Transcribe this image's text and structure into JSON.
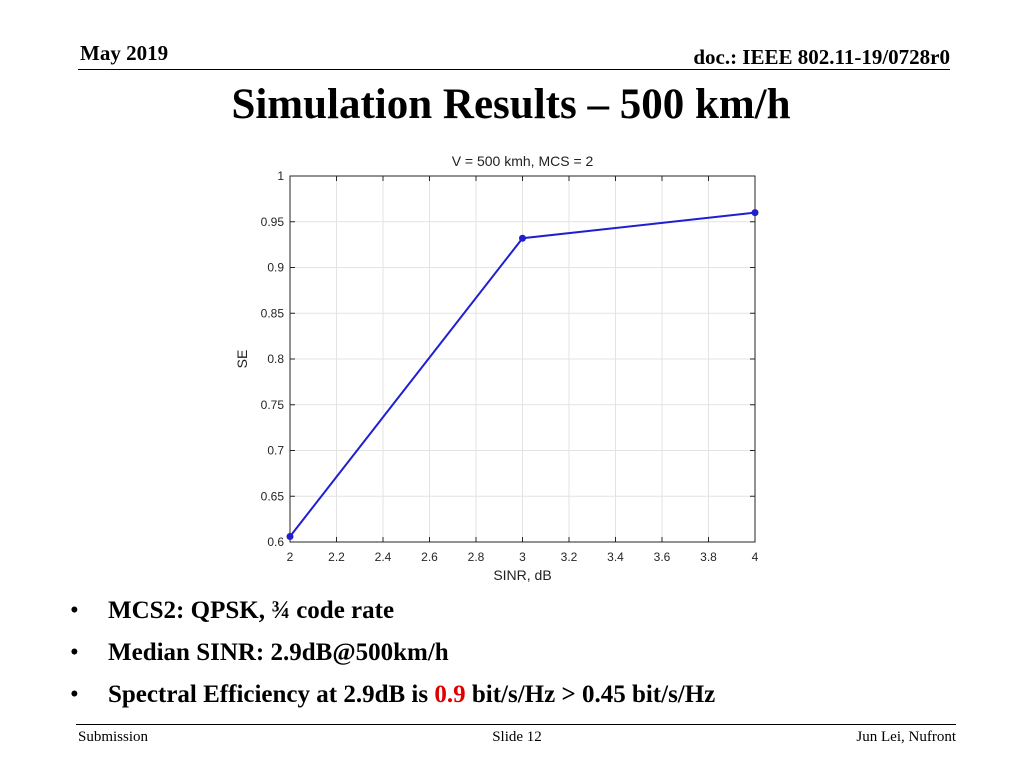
{
  "header": {
    "date": "May 2019",
    "doc_id": "doc.: IEEE 802.11-19/0728r0"
  },
  "slide": {
    "title": "Simulation Results – 500 km/h"
  },
  "chart_data": {
    "type": "line",
    "title": "V = 500 kmh, MCS = 2",
    "xlabel": "SINR, dB",
    "ylabel": "SE",
    "xlim": [
      2,
      4
    ],
    "ylim": [
      0.6,
      1
    ],
    "x_ticks": [
      2,
      2.2,
      2.4,
      2.6,
      2.8,
      3,
      3.2,
      3.4,
      3.6,
      3.8,
      4
    ],
    "x_tick_labels": [
      "2",
      "2.2",
      "2.4",
      "2.6",
      "2.8",
      "3",
      "3.2",
      "3.4",
      "3.6",
      "3.8",
      "4"
    ],
    "y_ticks": [
      0.6,
      0.65,
      0.7,
      0.75,
      0.8,
      0.85,
      0.9,
      0.95,
      1
    ],
    "y_tick_labels": [
      "0.6",
      "0.65",
      "0.7",
      "0.75",
      "0.8",
      "0.85",
      "0.9",
      "0.95",
      "1"
    ],
    "grid": true,
    "series": [
      {
        "x": [
          2,
          3,
          4
        ],
        "y": [
          0.606,
          0.932,
          0.96
        ],
        "color": "#1f1fd0"
      }
    ]
  },
  "bullets": {
    "b1": "MCS2: QPSK, ¾ code rate",
    "b2": "Median SINR:  2.9dB@500km/h",
    "b3_before": "Spectral Efficiency at 2.9dB  is ",
    "b3_highlight": "0.9",
    "b3_after": " bit/s/Hz  > 0.45 bit/s/Hz",
    "marker": "•"
  },
  "footer": {
    "left": "Submission",
    "center": "Slide 12",
    "right": "Jun Lei, Nufront"
  },
  "colors": {
    "highlight": "#e00000",
    "series": "#1f1fd0"
  }
}
